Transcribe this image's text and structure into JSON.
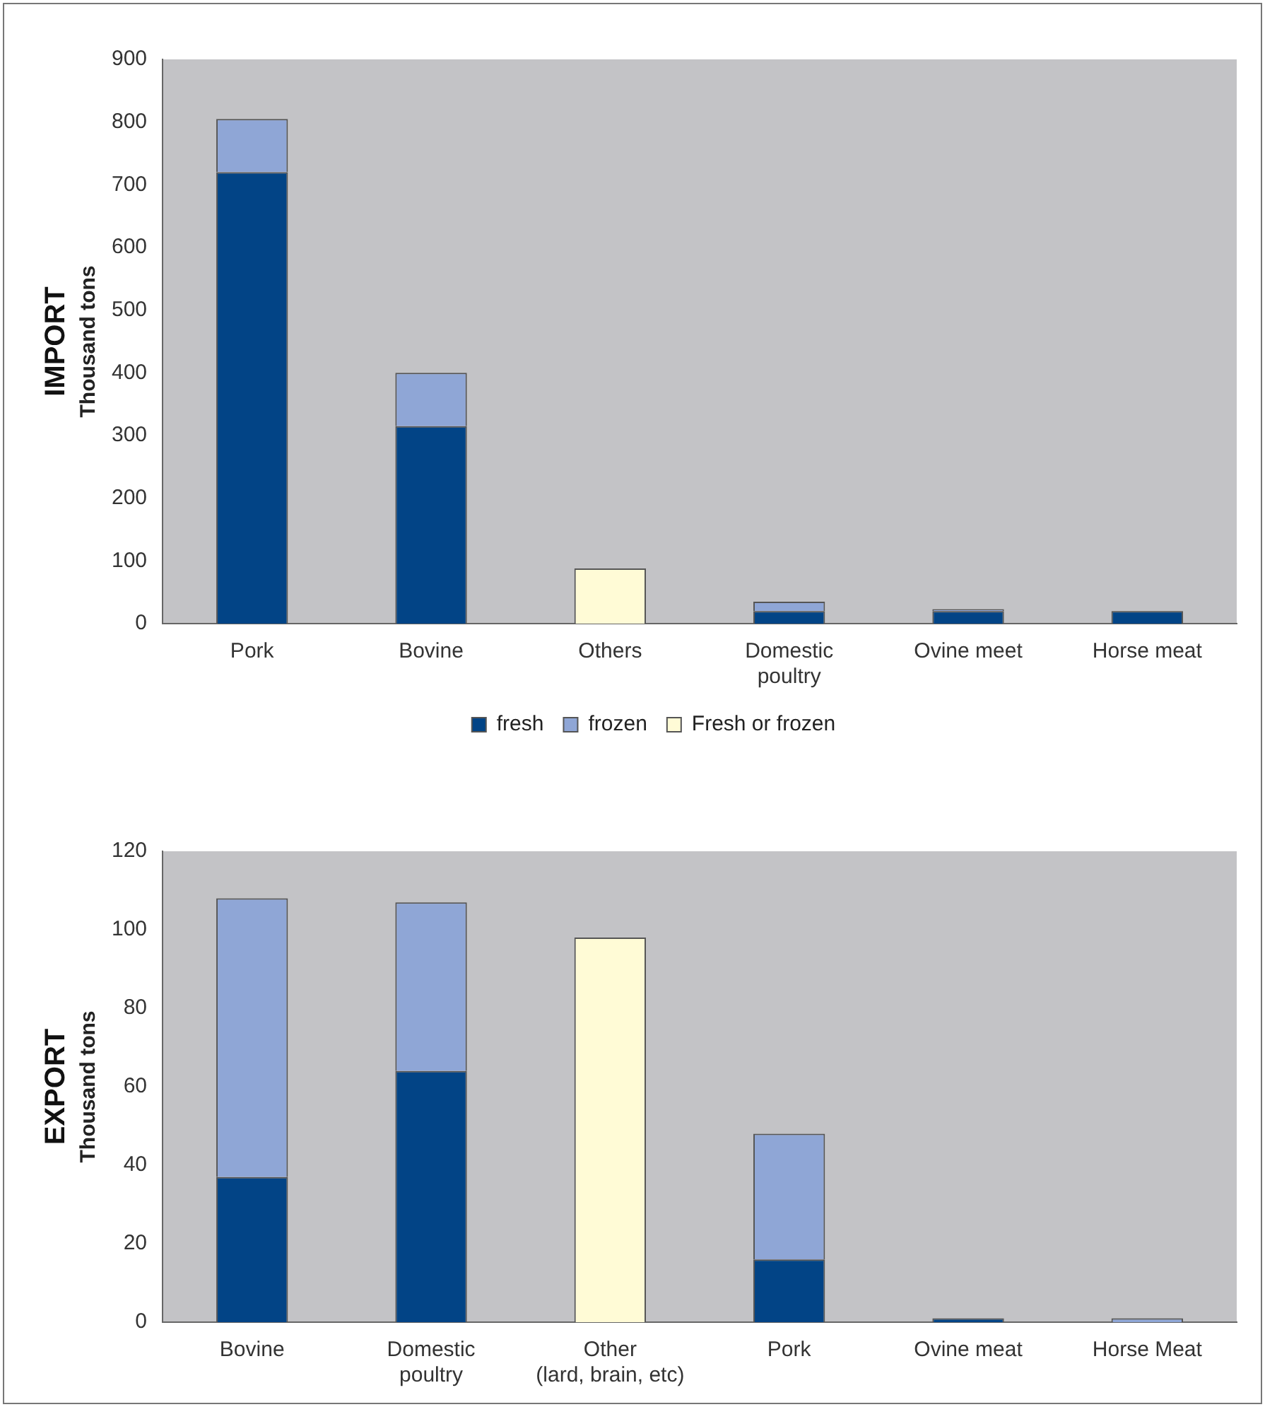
{
  "chart_data": [
    {
      "type": "bar",
      "title": "IMPORT",
      "ylabel": "Thousand tons",
      "categories": [
        "Pork",
        "Bovine",
        "Others",
        [
          "Domestic",
          "poultry"
        ],
        "Ovine meet",
        "Horse meat"
      ],
      "stacked": true,
      "ylim": [
        0,
        900
      ],
      "yticks": [
        0,
        100,
        200,
        300,
        400,
        500,
        600,
        700,
        800,
        900
      ],
      "grid": false,
      "legend": "bottom",
      "series": [
        {
          "name": "fresh",
          "color": "#024486",
          "values": [
            720,
            315,
            null,
            20,
            20,
            20
          ]
        },
        {
          "name": "frozen",
          "color": "#8fa6d6",
          "values": [
            85,
            85,
            null,
            15,
            3,
            null
          ]
        },
        {
          "name": "Fresh or frozen",
          "color": "#fffbd6",
          "values": [
            null,
            null,
            88,
            null,
            null,
            null
          ]
        }
      ]
    },
    {
      "type": "bar",
      "title": "EXPORT",
      "ylabel": "Thousand tons",
      "categories": [
        "Bovine",
        [
          "Domestic",
          "poultry"
        ],
        [
          "Other",
          "(lard, brain, etc)"
        ],
        "Pork",
        "Ovine meat",
        "Horse Meat"
      ],
      "stacked": true,
      "ylim": [
        0,
        120
      ],
      "yticks": [
        0,
        20,
        40,
        60,
        80,
        100,
        120
      ],
      "grid": false,
      "series": [
        {
          "color": "#024486",
          "values": [
            37,
            64,
            null,
            16,
            1,
            null
          ]
        },
        {
          "color": "#8fa6d6",
          "values": [
            71,
            43,
            null,
            32,
            null,
            1
          ]
        },
        {
          "color": "#fffbd6",
          "values": [
            null,
            null,
            98,
            null,
            null,
            null
          ]
        }
      ]
    }
  ]
}
